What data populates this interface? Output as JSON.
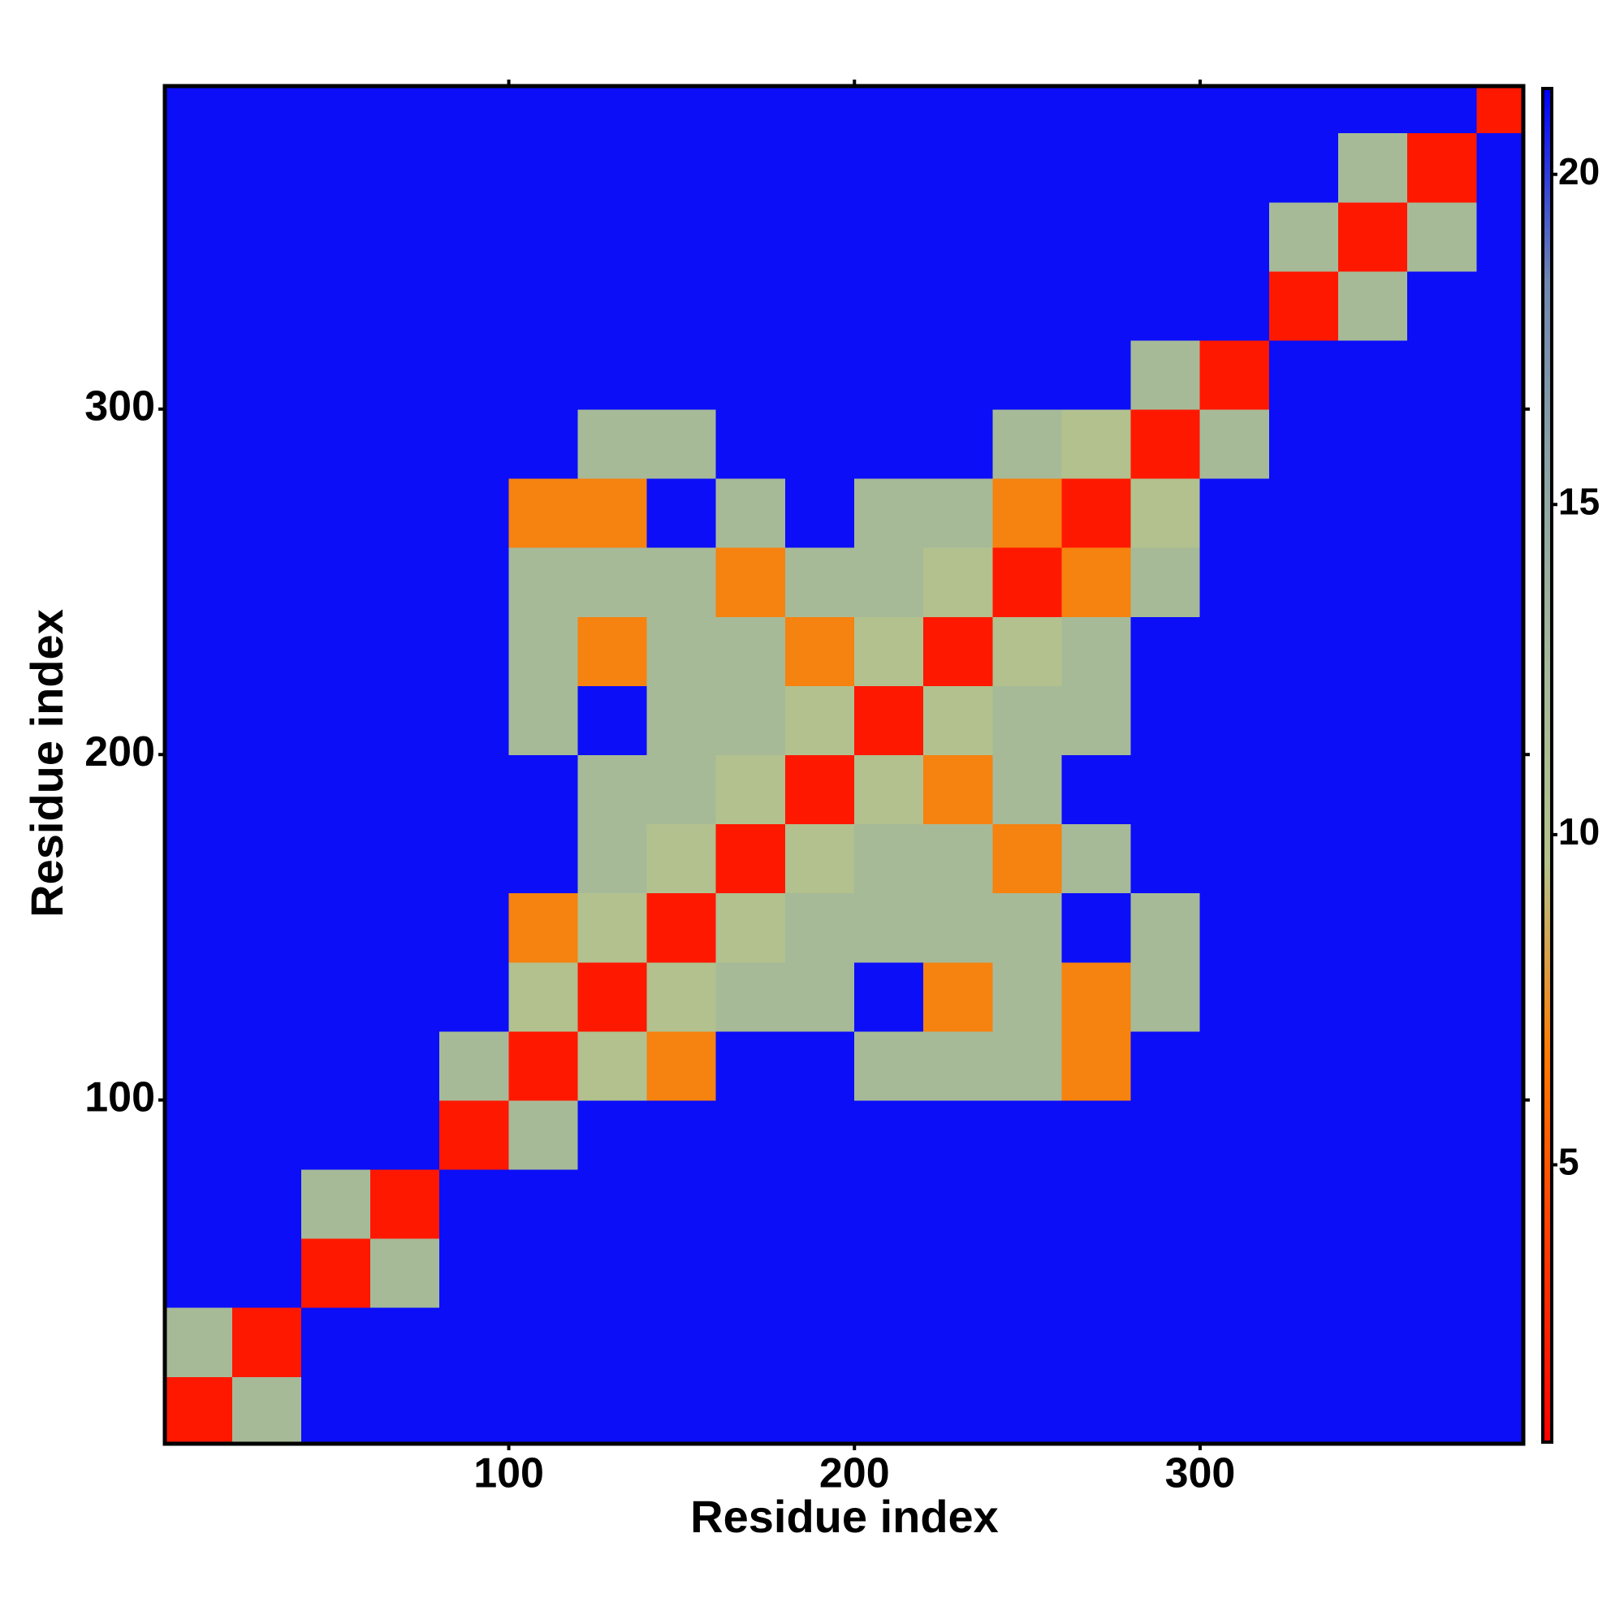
{
  "chart_data": {
    "type": "heatmap",
    "xlabel": "Residue index",
    "ylabel": "Residue index",
    "x": [
      10,
      30,
      50,
      70,
      90,
      110,
      130,
      150,
      170,
      190,
      210,
      230,
      250,
      270,
      290,
      310,
      330,
      350,
      370,
      390
    ],
    "y": [
      10,
      30,
      50,
      70,
      90,
      110,
      130,
      150,
      170,
      190,
      210,
      230,
      250,
      270,
      290,
      310,
      330,
      350,
      370,
      390
    ],
    "z": [
      [
        2,
        12,
        21,
        21,
        21,
        21,
        21,
        21,
        21,
        21,
        21,
        21,
        21,
        21,
        21,
        21,
        21,
        21,
        21,
        21
      ],
      [
        12,
        2,
        21,
        21,
        21,
        21,
        21,
        21,
        21,
        21,
        21,
        21,
        21,
        21,
        21,
        21,
        21,
        21,
        21,
        21
      ],
      [
        21,
        21,
        2,
        12,
        21,
        21,
        21,
        21,
        21,
        21,
        21,
        21,
        21,
        21,
        21,
        21,
        21,
        21,
        21,
        21
      ],
      [
        21,
        21,
        12,
        2,
        21,
        21,
        21,
        21,
        21,
        21,
        21,
        21,
        21,
        21,
        21,
        21,
        21,
        21,
        21,
        21
      ],
      [
        21,
        21,
        21,
        21,
        2,
        12,
        21,
        21,
        21,
        21,
        21,
        21,
        21,
        21,
        21,
        21,
        21,
        21,
        21,
        21
      ],
      [
        21,
        21,
        21,
        21,
        12,
        2,
        10,
        7,
        21,
        21,
        12,
        12,
        12,
        7,
        21,
        21,
        21,
        21,
        21,
        21
      ],
      [
        21,
        21,
        21,
        21,
        21,
        10,
        2,
        10,
        12,
        12,
        21,
        7,
        12,
        7,
        12,
        21,
        21,
        21,
        21,
        21
      ],
      [
        21,
        21,
        21,
        21,
        21,
        7,
        10,
        2,
        10,
        12,
        12,
        12,
        12,
        21,
        12,
        21,
        21,
        21,
        21,
        21
      ],
      [
        21,
        21,
        21,
        21,
        21,
        21,
        12,
        10,
        2,
        10,
        12,
        12,
        7,
        12,
        21,
        21,
        21,
        21,
        21,
        21
      ],
      [
        21,
        21,
        21,
        21,
        21,
        21,
        12,
        12,
        10,
        2,
        10,
        7,
        12,
        21,
        21,
        21,
        21,
        21,
        21,
        21
      ],
      [
        21,
        21,
        21,
        21,
        21,
        12,
        21,
        12,
        12,
        10,
        2,
        10,
        12,
        12,
        21,
        21,
        21,
        21,
        21,
        21
      ],
      [
        21,
        21,
        21,
        21,
        21,
        12,
        7,
        12,
        12,
        7,
        10,
        2,
        10,
        12,
        21,
        21,
        21,
        21,
        21,
        21
      ],
      [
        21,
        21,
        21,
        21,
        21,
        12,
        12,
        12,
        7,
        12,
        12,
        10,
        2,
        7,
        12,
        21,
        21,
        21,
        21,
        21
      ],
      [
        21,
        21,
        21,
        21,
        21,
        7,
        7,
        21,
        12,
        21,
        12,
        12,
        7,
        2,
        10,
        21,
        21,
        21,
        21,
        21
      ],
      [
        21,
        21,
        21,
        21,
        21,
        21,
        12,
        12,
        21,
        21,
        21,
        21,
        12,
        10,
        2,
        12,
        21,
        21,
        21,
        21
      ],
      [
        21,
        21,
        21,
        21,
        21,
        21,
        21,
        21,
        21,
        21,
        21,
        21,
        21,
        21,
        12,
        2,
        21,
        21,
        21,
        21
      ],
      [
        21,
        21,
        21,
        21,
        21,
        21,
        21,
        21,
        21,
        21,
        21,
        21,
        21,
        21,
        21,
        21,
        2,
        12,
        21,
        21
      ],
      [
        21,
        21,
        21,
        21,
        21,
        21,
        21,
        21,
        21,
        21,
        21,
        21,
        21,
        21,
        21,
        21,
        12,
        2,
        12,
        21
      ],
      [
        21,
        21,
        21,
        21,
        21,
        21,
        21,
        21,
        21,
        21,
        21,
        21,
        21,
        21,
        21,
        21,
        21,
        12,
        2,
        21
      ],
      [
        21,
        21,
        21,
        21,
        21,
        21,
        21,
        21,
        21,
        21,
        21,
        21,
        21,
        21,
        21,
        21,
        21,
        21,
        21,
        2
      ]
    ],
    "xlim": [
      0.5,
      393.5
    ],
    "ylim": [
      0.5,
      393.5
    ],
    "xticks": [
      100,
      200,
      300
    ],
    "yticks": [
      100,
      200,
      300
    ],
    "zlim": [
      0.8,
      21.3
    ],
    "zticks": [
      5,
      10,
      15,
      20
    ],
    "colors": [
      "#ff0000",
      "#ff3a00",
      "#ff7a00",
      "#b4c28c",
      "#a4b89a",
      "#8ca3a4",
      "#6f87b0",
      "#0000ff"
    ]
  }
}
